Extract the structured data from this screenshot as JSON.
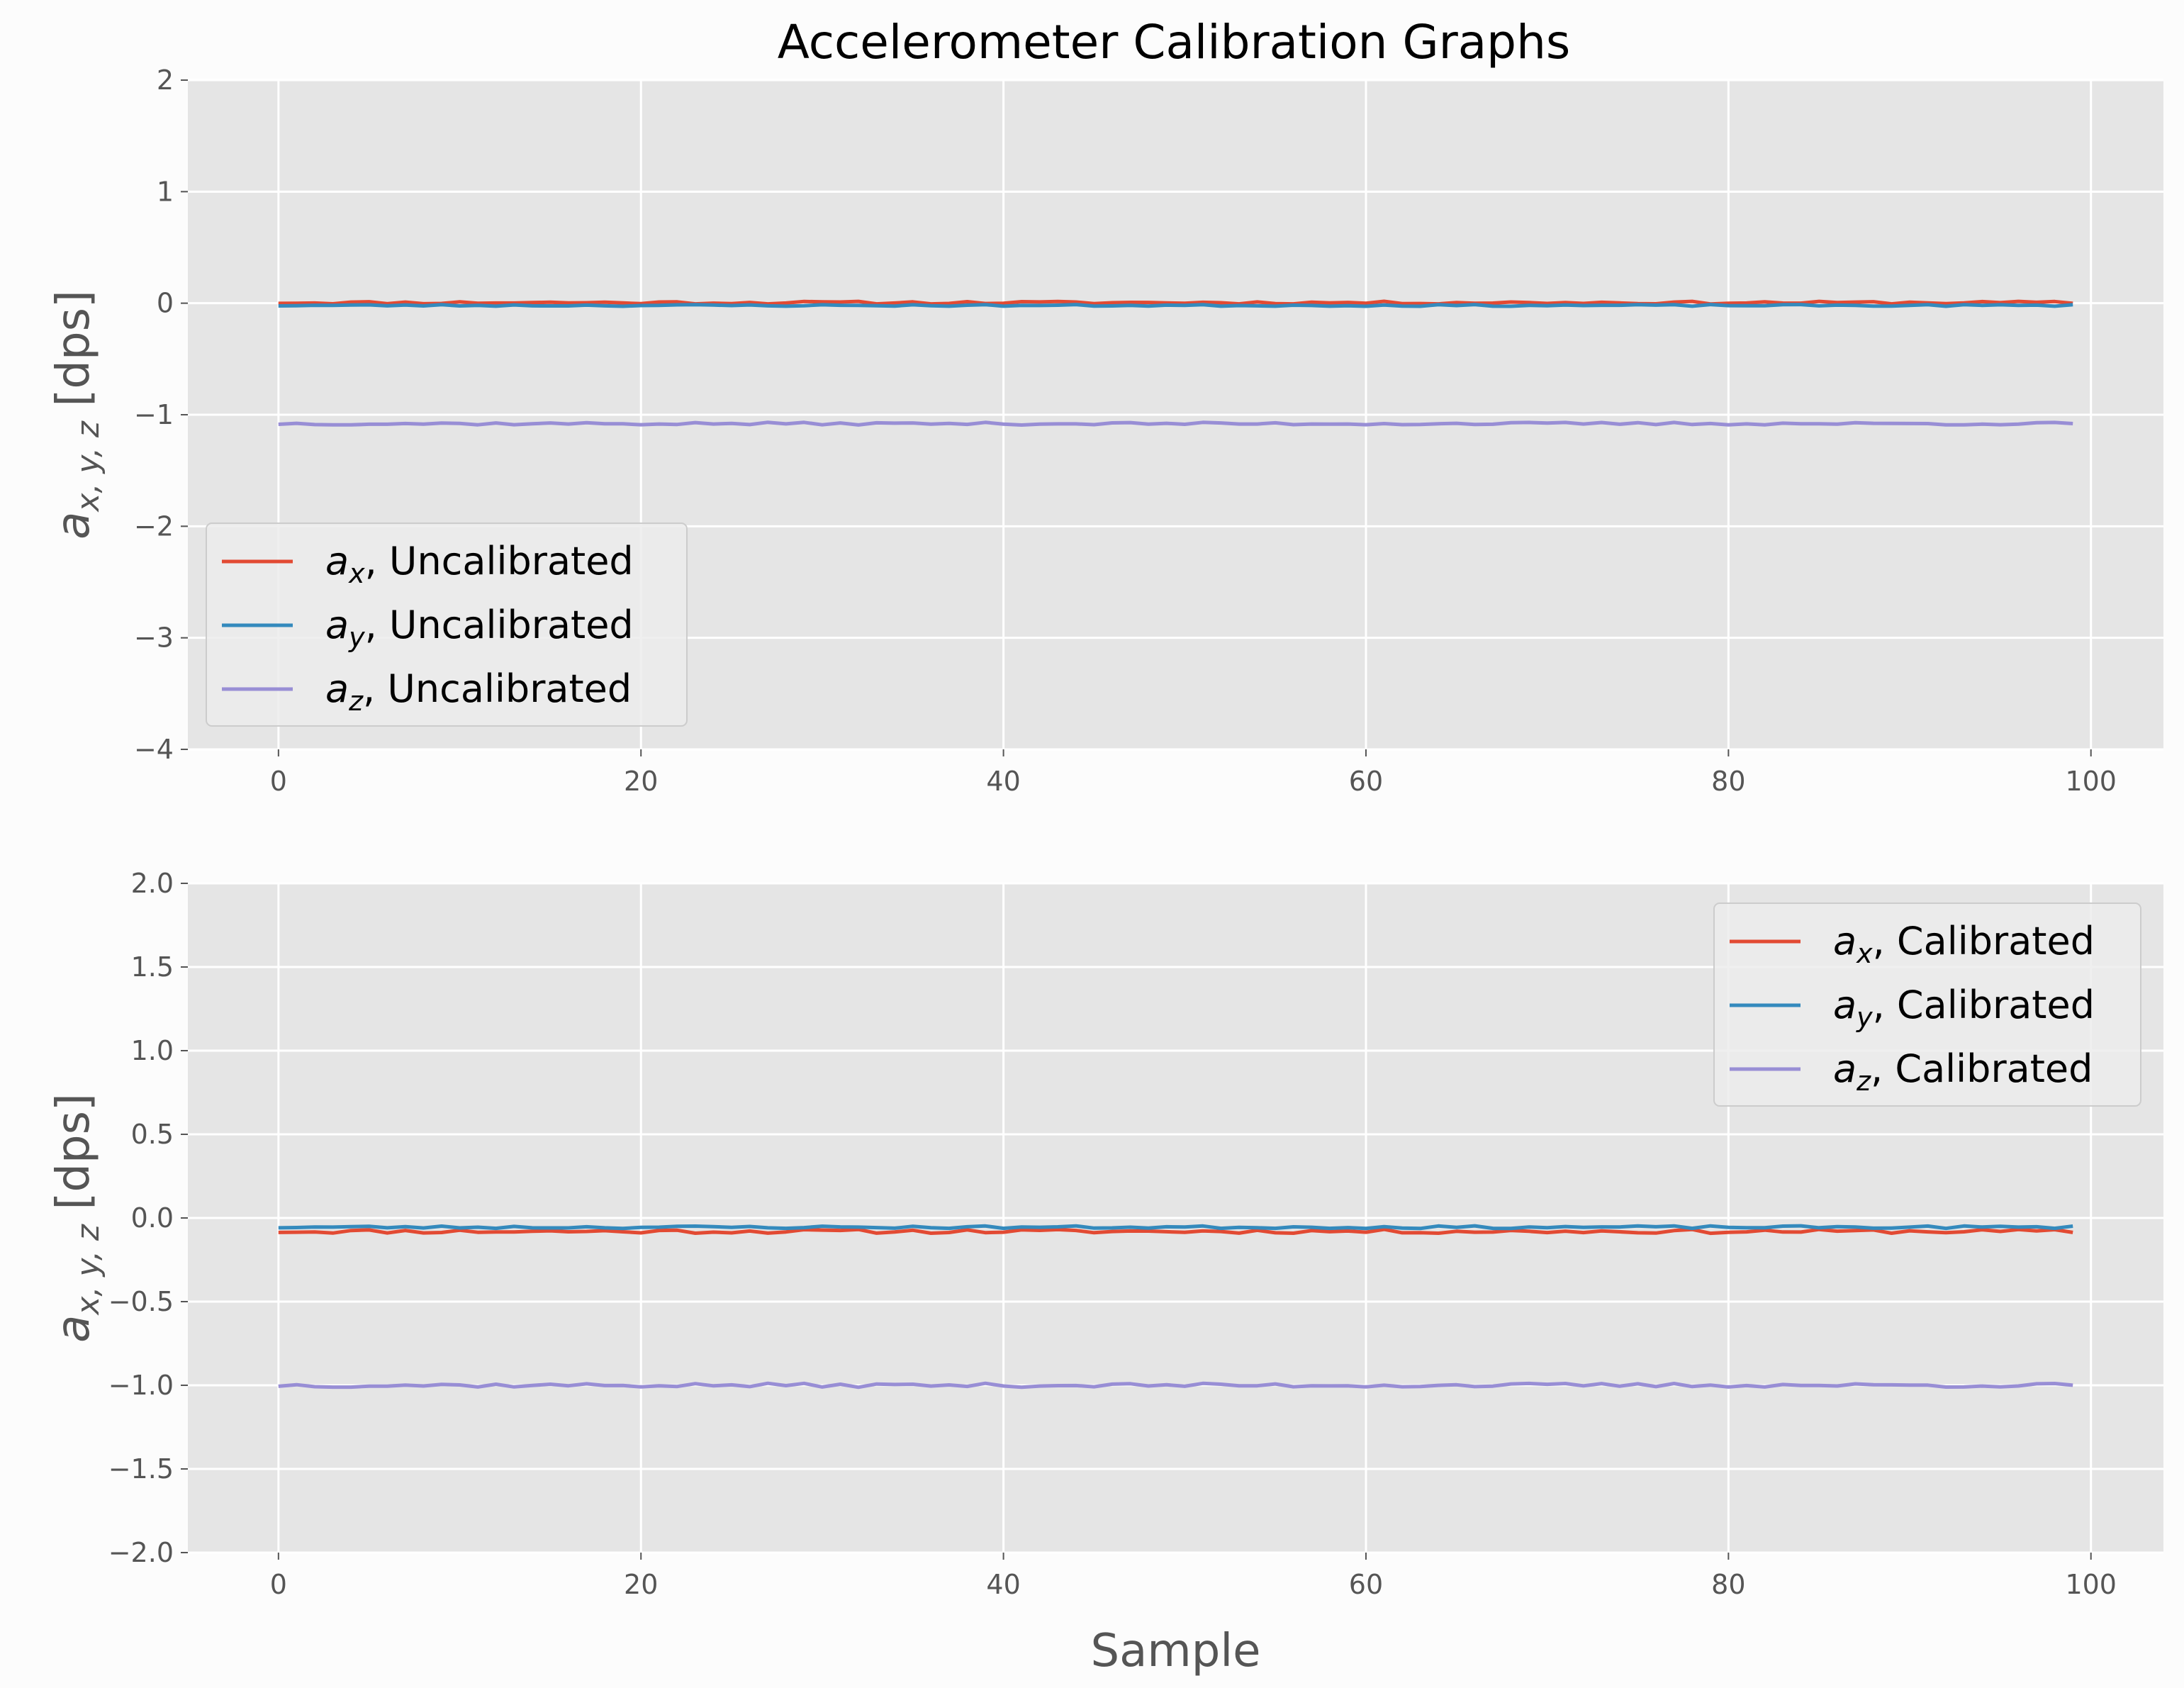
{
  "figure": {
    "title": "Accelerometer Calibration Graphs",
    "background": "#fcfcfc",
    "axes_facecolor": "#e5e5e5",
    "grid_color": "#ffffff"
  },
  "chart_data": [
    {
      "type": "line",
      "title": "Accelerometer Calibration Graphs",
      "xlabel": "",
      "ylabel": "a_{x,y,z} [dps]",
      "xlim": [
        -5,
        104
      ],
      "ylim": [
        -4,
        2
      ],
      "xticks": [
        0,
        20,
        40,
        60,
        80,
        100
      ],
      "yticks": [
        -4,
        -3,
        -2,
        -1,
        0,
        1,
        2
      ],
      "ytick_labels": [
        "−4",
        "−3",
        "−2",
        "−1",
        "0",
        "1",
        "2"
      ],
      "grid": true,
      "legend": "lower-left",
      "series": [
        {
          "name": "a_x, Uncalibrated",
          "sym": "a",
          "sub": "x",
          "suffix": ", Uncalibrated",
          "color": "#E24A33",
          "mean": 0.005,
          "amp": 0.012,
          "seed": 11
        },
        {
          "name": "a_y, Uncalibrated",
          "sym": "a",
          "sub": "y",
          "suffix": ", Uncalibrated",
          "color": "#348ABD",
          "mean": -0.02,
          "amp": 0.008,
          "seed": 23
        },
        {
          "name": "a_z, Uncalibrated",
          "sym": "a",
          "sub": "z",
          "suffix": ", Uncalibrated",
          "color": "#988ED5",
          "mean": -1.08,
          "amp": 0.012,
          "seed": 37
        }
      ]
    },
    {
      "type": "line",
      "title": "",
      "xlabel": "Sample",
      "ylabel": "a_{x,y,z} [dps]",
      "xlim": [
        -5,
        104
      ],
      "ylim": [
        -2,
        2
      ],
      "xticks": [
        0,
        20,
        40,
        60,
        80,
        100
      ],
      "yticks": [
        -2.0,
        -1.5,
        -1.0,
        -0.5,
        0.0,
        0.5,
        1.0,
        1.5,
        2.0
      ],
      "ytick_labels": [
        "−2.0",
        "−1.5",
        "−1.0",
        "−0.5",
        "0.0",
        "0.5",
        "1.0",
        "1.5",
        "2.0"
      ],
      "grid": true,
      "legend": "upper-right",
      "series": [
        {
          "name": "a_x, Calibrated",
          "sym": "a",
          "sub": "x",
          "suffix": ", Calibrated",
          "color": "#E24A33",
          "mean": -0.08,
          "amp": 0.012,
          "seed": 11
        },
        {
          "name": "a_y, Calibrated",
          "sym": "a",
          "sub": "y",
          "suffix": ", Calibrated",
          "color": "#348ABD",
          "mean": -0.055,
          "amp": 0.008,
          "seed": 23
        },
        {
          "name": "a_z, Calibrated",
          "sym": "a",
          "sub": "z",
          "suffix": ", Calibrated",
          "color": "#988ED5",
          "mean": -1.0,
          "amp": 0.012,
          "seed": 37
        }
      ]
    }
  ]
}
